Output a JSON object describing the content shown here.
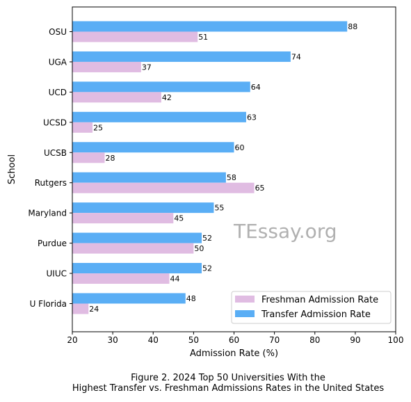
{
  "chart_data": {
    "type": "bar",
    "orientation": "horizontal",
    "categories": [
      "OSU",
      "UGA",
      "UCD",
      "UCSD",
      "UCSB",
      "Rutgers",
      "Maryland",
      "Purdue",
      "UIUC",
      "U Florida"
    ],
    "series": [
      {
        "name": "Freshman Admission Rate",
        "color": "#e0bce2",
        "values": [
          51,
          37,
          42,
          25,
          28,
          65,
          45,
          50,
          44,
          24
        ]
      },
      {
        "name": "Transfer Admission Rate",
        "color": "#5aaef5",
        "values": [
          88,
          74,
          64,
          63,
          60,
          58,
          55,
          52,
          52,
          48
        ]
      }
    ],
    "xlabel": "Admission Rate (%)",
    "ylabel": "School",
    "xlim": [
      20,
      100
    ],
    "xticks": [
      20,
      30,
      40,
      50,
      60,
      70,
      80,
      90,
      100
    ],
    "grid": false,
    "legend_position": "bottom-right",
    "data_labels": true
  },
  "watermark": "TEssay.org",
  "caption": {
    "line1": "Figure 2. 2024 Top 50 Universities With the",
    "line2": "Highest Transfer vs. Freshman Admissions Rates in the United States"
  }
}
